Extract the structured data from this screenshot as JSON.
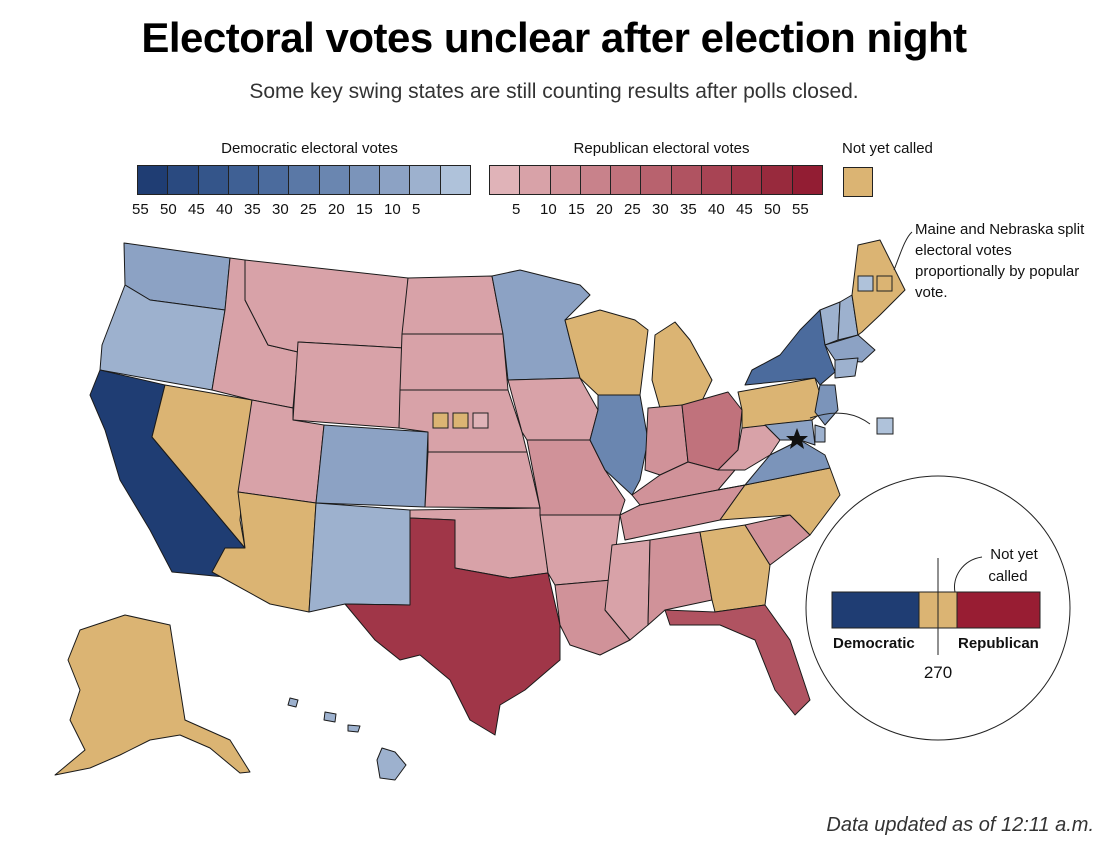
{
  "title": "Electoral votes unclear after election night",
  "subtitle": "Some key swing states are still counting results after polls closed.",
  "legend": {
    "dem_title": "Democratic electoral votes",
    "rep_title": "Republican electoral votes",
    "notcalled_title": "Not yet called",
    "dem_ticks": [
      "55",
      "50",
      "45",
      "40",
      "35",
      "30",
      "25",
      "20",
      "15",
      "10",
      "5"
    ],
    "rep_ticks": [
      "5",
      "10",
      "15",
      "20",
      "25",
      "30",
      "35",
      "40",
      "45",
      "50",
      "55"
    ],
    "dem_colors": [
      "#1f3d73",
      "#2a4a80",
      "#34558a",
      "#3f6094",
      "#4b6b9d",
      "#5a78a6",
      "#6a86b0",
      "#7b94ba",
      "#8ca2c4",
      "#9db1ce",
      "#afc2da"
    ],
    "rep_colors": [
      "#e0b3b8",
      "#d8a2a8",
      "#d09299",
      "#c8828b",
      "#c0727c",
      "#b8626e",
      "#b05361",
      "#a84454",
      "#a03648",
      "#982a3d",
      "#921d33"
    ],
    "notcalled_color": "#dbb473"
  },
  "annotations": {
    "maine_nebraska": "Maine and Nebraska split electoral votes proportionally by popular vote.",
    "inset_not_called": "Not yet called",
    "inset_dem": "Democratic",
    "inset_rep": "Republican",
    "inset_threshold": "270"
  },
  "footer": "Data updated as of 12:11 a.m.",
  "chart_data": {
    "type": "choropleth",
    "title": "Electoral votes unclear after election night",
    "legend_categories": [
      "Democratic electoral votes",
      "Republican electoral votes",
      "Not yet called"
    ],
    "states": [
      {
        "name": "WA",
        "status": "dem",
        "ev": 12
      },
      {
        "name": "OR",
        "status": "dem",
        "ev": 7
      },
      {
        "name": "CA",
        "status": "dem",
        "ev": 55
      },
      {
        "name": "NV",
        "status": "not_called",
        "ev": 6
      },
      {
        "name": "ID",
        "status": "rep",
        "ev": 4
      },
      {
        "name": "MT",
        "status": "rep",
        "ev": 3
      },
      {
        "name": "WY",
        "status": "rep",
        "ev": 3
      },
      {
        "name": "UT",
        "status": "rep",
        "ev": 6
      },
      {
        "name": "AZ",
        "status": "not_called",
        "ev": 11
      },
      {
        "name": "CO",
        "status": "dem",
        "ev": 9
      },
      {
        "name": "NM",
        "status": "dem",
        "ev": 5
      },
      {
        "name": "ND",
        "status": "rep",
        "ev": 3
      },
      {
        "name": "SD",
        "status": "rep",
        "ev": 3
      },
      {
        "name": "NE",
        "status": "rep",
        "ev": 5
      },
      {
        "name": "KS",
        "status": "rep",
        "ev": 6
      },
      {
        "name": "OK",
        "status": "rep",
        "ev": 7
      },
      {
        "name": "TX",
        "status": "rep",
        "ev": 38
      },
      {
        "name": "MN",
        "status": "dem",
        "ev": 10
      },
      {
        "name": "IA",
        "status": "rep",
        "ev": 6
      },
      {
        "name": "MO",
        "status": "rep",
        "ev": 10
      },
      {
        "name": "AR",
        "status": "rep",
        "ev": 6
      },
      {
        "name": "LA",
        "status": "rep",
        "ev": 8
      },
      {
        "name": "WI",
        "status": "not_called",
        "ev": 10
      },
      {
        "name": "IL",
        "status": "dem",
        "ev": 20
      },
      {
        "name": "MI",
        "status": "not_called",
        "ev": 16
      },
      {
        "name": "IN",
        "status": "rep",
        "ev": 11
      },
      {
        "name": "OH",
        "status": "rep",
        "ev": 18
      },
      {
        "name": "KY",
        "status": "rep",
        "ev": 8
      },
      {
        "name": "TN",
        "status": "rep",
        "ev": 11
      },
      {
        "name": "MS",
        "status": "rep",
        "ev": 6
      },
      {
        "name": "AL",
        "status": "rep",
        "ev": 9
      },
      {
        "name": "GA",
        "status": "not_called",
        "ev": 16
      },
      {
        "name": "FL",
        "status": "rep",
        "ev": 29
      },
      {
        "name": "SC",
        "status": "rep",
        "ev": 9
      },
      {
        "name": "NC",
        "status": "not_called",
        "ev": 15
      },
      {
        "name": "VA",
        "status": "dem",
        "ev": 13
      },
      {
        "name": "WV",
        "status": "rep",
        "ev": 5
      },
      {
        "name": "PA",
        "status": "not_called",
        "ev": 20
      },
      {
        "name": "NY",
        "status": "dem",
        "ev": 29
      },
      {
        "name": "VT",
        "status": "dem",
        "ev": 3
      },
      {
        "name": "NH",
        "status": "dem",
        "ev": 4
      },
      {
        "name": "ME",
        "status": "not_called",
        "ev": 4
      },
      {
        "name": "MA",
        "status": "dem",
        "ev": 11
      },
      {
        "name": "CT",
        "status": "dem",
        "ev": 7
      },
      {
        "name": "NJ",
        "status": "dem",
        "ev": 14
      },
      {
        "name": "DE",
        "status": "dem",
        "ev": 3
      },
      {
        "name": "MD",
        "status": "dem",
        "ev": 10
      },
      {
        "name": "DC",
        "status": "dem",
        "ev": 3
      },
      {
        "name": "AK",
        "status": "not_called",
        "ev": 3
      },
      {
        "name": "HI",
        "status": "dem",
        "ev": 4
      }
    ]
  }
}
